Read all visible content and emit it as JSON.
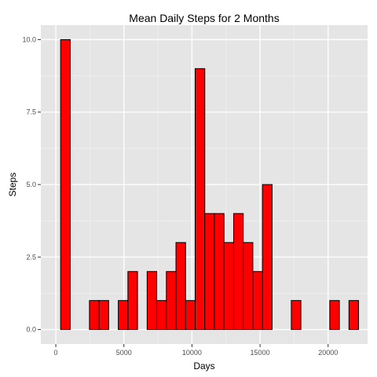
{
  "chart_data": {
    "type": "bar",
    "title": "Mean Daily Steps for 2 Months",
    "xlabel": "Days",
    "ylabel": "Steps",
    "xlim": [
      -1100,
      22900
    ],
    "ylim": [
      -0.5,
      10.5
    ],
    "x_ticks": [
      0,
      5000,
      10000,
      15000,
      20000
    ],
    "x_tick_labels": [
      "0",
      "5000",
      "10000",
      "15000",
      "20000"
    ],
    "y_ticks": [
      0,
      2.5,
      5,
      7.5,
      10
    ],
    "y_tick_labels": [
      "0.0",
      "2.5",
      "5.0",
      "7.5",
      "10.0"
    ],
    "grid": true,
    "bin_width": 706,
    "bins": [
      {
        "x": 0,
        "count": 0
      },
      {
        "x": 706,
        "count": 10
      },
      {
        "x": 1412,
        "count": 0
      },
      {
        "x": 2118,
        "count": 0
      },
      {
        "x": 2824,
        "count": 1
      },
      {
        "x": 3530,
        "count": 1
      },
      {
        "x": 4236,
        "count": 0
      },
      {
        "x": 4942,
        "count": 1
      },
      {
        "x": 5648,
        "count": 2
      },
      {
        "x": 6354,
        "count": 0
      },
      {
        "x": 7060,
        "count": 2
      },
      {
        "x": 7766,
        "count": 1
      },
      {
        "x": 8472,
        "count": 2
      },
      {
        "x": 9178,
        "count": 3
      },
      {
        "x": 9884,
        "count": 1
      },
      {
        "x": 10590,
        "count": 9
      },
      {
        "x": 11296,
        "count": 4
      },
      {
        "x": 12002,
        "count": 4
      },
      {
        "x": 12708,
        "count": 3
      },
      {
        "x": 13414,
        "count": 4
      },
      {
        "x": 14120,
        "count": 3
      },
      {
        "x": 14826,
        "count": 2
      },
      {
        "x": 15532,
        "count": 5
      },
      {
        "x": 16238,
        "count": 0
      },
      {
        "x": 16944,
        "count": 0
      },
      {
        "x": 17650,
        "count": 1
      },
      {
        "x": 18356,
        "count": 0
      },
      {
        "x": 19062,
        "count": 0
      },
      {
        "x": 19768,
        "count": 0
      },
      {
        "x": 20474,
        "count": 1
      },
      {
        "x": 21180,
        "count": 0
      },
      {
        "x": 21886,
        "count": 1
      }
    ],
    "colors": {
      "panel": "#e5e5e5",
      "grid_major": "#ffffff",
      "grid_minor": "#f2f2f2",
      "bar_fill": "#ff0000",
      "bar_stroke": "#000000"
    }
  }
}
